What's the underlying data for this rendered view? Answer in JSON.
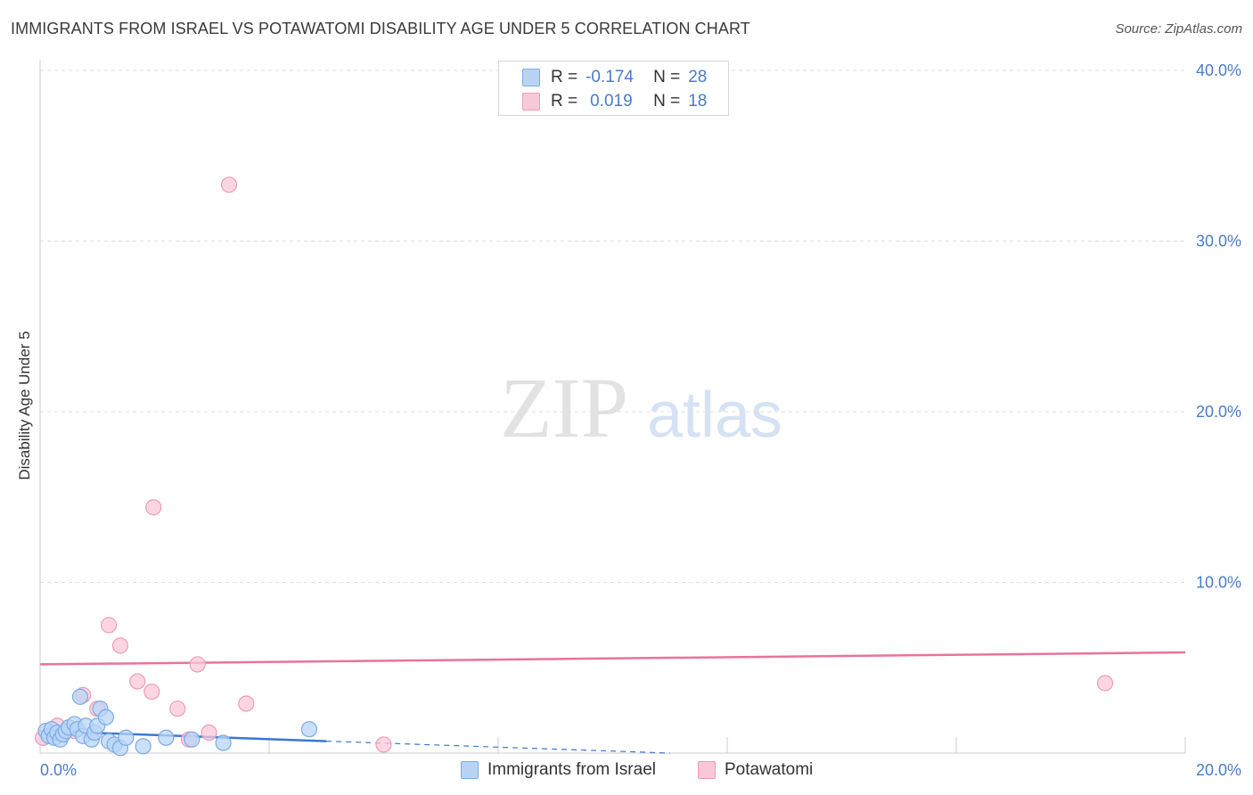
{
  "title": "IMMIGRANTS FROM ISRAEL VS POTAWATOMI DISABILITY AGE UNDER 5 CORRELATION CHART",
  "source": "Source: ZipAtlas.com",
  "watermark": {
    "zip": "ZIP",
    "atlas": "atlas"
  },
  "colors": {
    "blue_fill": "#b8d4f5",
    "blue_stroke": "#7aaae6",
    "blue_line": "#3a78d0",
    "pink_fill": "#f9c8d8",
    "pink_stroke": "#ef9bb8",
    "pink_line": "#e8739c",
    "tick_text": "#4a7cc7",
    "grid": "#dddddd"
  },
  "legend": {
    "rows": [
      {
        "r_label": "R =",
        "r_value": "-0.174",
        "n_label": "N =",
        "n_value": "28"
      },
      {
        "r_label": "R =",
        "r_value": "0.019",
        "n_label": "N =",
        "n_value": "18"
      }
    ]
  },
  "chart_data": {
    "type": "scatter",
    "title": "IMMIGRANTS FROM ISRAEL VS POTAWATOMI DISABILITY AGE UNDER 5 CORRELATION CHART",
    "xlabel": "",
    "ylabel": "Disability Age Under 5",
    "xlim": [
      0,
      20
    ],
    "ylim": [
      0,
      40
    ],
    "x_tick_labels": [
      "0.0%",
      "20.0%"
    ],
    "y_ticks": [
      10,
      20,
      30,
      40
    ],
    "y_tick_labels": [
      "10.0%",
      "20.0%",
      "30.0%",
      "40.0%"
    ],
    "grid": true,
    "legend_position": "top-center",
    "series": [
      {
        "name": "Immigrants from Israel",
        "color": "#7aaae6",
        "points": [
          [
            0.1,
            1.3
          ],
          [
            0.15,
            1.0
          ],
          [
            0.2,
            1.4
          ],
          [
            0.25,
            0.9
          ],
          [
            0.3,
            1.2
          ],
          [
            0.35,
            0.8
          ],
          [
            0.4,
            1.1
          ],
          [
            0.45,
            1.3
          ],
          [
            0.5,
            1.5
          ],
          [
            0.6,
            1.7
          ],
          [
            0.65,
            1.4
          ],
          [
            0.7,
            3.3
          ],
          [
            0.75,
            1.0
          ],
          [
            0.8,
            1.6
          ],
          [
            0.9,
            0.8
          ],
          [
            0.95,
            1.2
          ],
          [
            1.0,
            1.6
          ],
          [
            1.05,
            2.6
          ],
          [
            1.15,
            2.1
          ],
          [
            1.2,
            0.7
          ],
          [
            1.3,
            0.5
          ],
          [
            1.4,
            0.3
          ],
          [
            1.5,
            0.9
          ],
          [
            1.8,
            0.4
          ],
          [
            2.2,
            0.9
          ],
          [
            2.65,
            0.8
          ],
          [
            3.2,
            0.6
          ],
          [
            4.7,
            1.4
          ]
        ],
        "trend": {
          "x": [
            0,
            5
          ],
          "y": [
            1.3,
            0.7
          ],
          "dashed_extension": {
            "x": [
              5,
              11
            ],
            "y": [
              0.7,
              0.0
            ]
          }
        }
      },
      {
        "name": "Potawatomi",
        "color": "#ef9bb8",
        "points": [
          [
            0.05,
            0.9
          ],
          [
            0.3,
            1.6
          ],
          [
            0.6,
            1.3
          ],
          [
            0.75,
            3.4
          ],
          [
            1.0,
            2.6
          ],
          [
            1.2,
            7.5
          ],
          [
            1.4,
            6.3
          ],
          [
            1.7,
            4.2
          ],
          [
            1.95,
            3.6
          ],
          [
            1.98,
            14.4
          ],
          [
            2.4,
            2.6
          ],
          [
            2.6,
            0.8
          ],
          [
            2.75,
            5.2
          ],
          [
            2.95,
            1.2
          ],
          [
            3.3,
            33.3
          ],
          [
            3.6,
            2.9
          ],
          [
            6.0,
            0.5
          ],
          [
            18.6,
            4.1
          ]
        ],
        "trend": {
          "x": [
            0,
            20
          ],
          "y": [
            5.2,
            5.9
          ]
        }
      }
    ]
  }
}
